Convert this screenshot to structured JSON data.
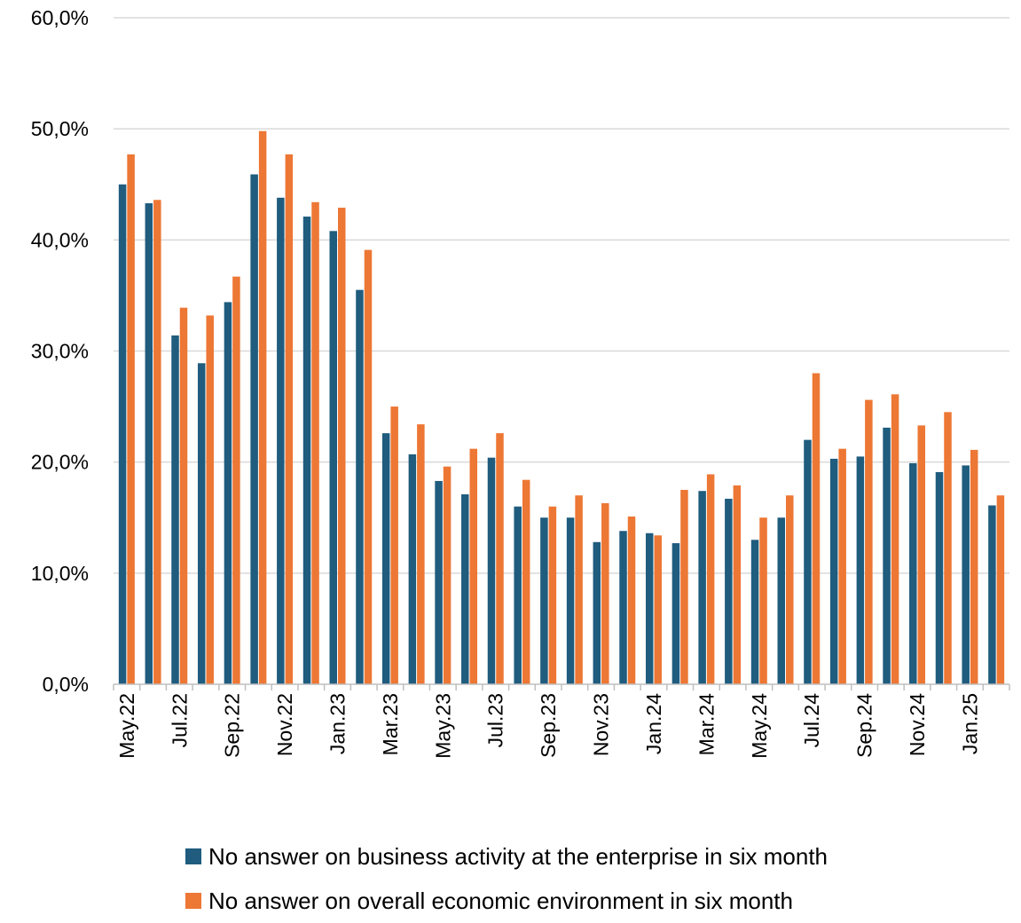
{
  "chart_data": {
    "type": "bar",
    "title": "",
    "xlabel": "",
    "ylabel": "",
    "ylim": [
      0,
      60
    ],
    "yticks": [
      "0,0%",
      "10,0%",
      "20,0%",
      "30,0%",
      "40,0%",
      "50,0%",
      "60,0%"
    ],
    "grid": true,
    "legend_position": "bottom",
    "categories": [
      "May.22",
      "Jun.22",
      "Jul.22",
      "Aug.22",
      "Sep.22",
      "Oct.22",
      "Nov.22",
      "Dec.22",
      "Jan.23",
      "Feb.23",
      "Mar.23",
      "Apr.23",
      "May.23",
      "Jun.23",
      "Jul.23",
      "Aug.23",
      "Sep.23",
      "Oct.23",
      "Nov.23",
      "Dec.23",
      "Jan.24",
      "Feb.24",
      "Mar.24",
      "Apr.24",
      "May.24",
      "Jun.24",
      "Jul.24",
      "Aug.24",
      "Sep.24",
      "Oct.24",
      "Nov.24",
      "Dec.24",
      "Jan.25",
      "Feb.25"
    ],
    "xtick_labels": [
      "May.22",
      "",
      "Jul.22",
      "",
      "Sep.22",
      "",
      "Nov.22",
      "",
      "Jan.23",
      "",
      "Mar.23",
      "",
      "May.23",
      "",
      "Jul.23",
      "",
      "Sep.23",
      "",
      "Nov.23",
      "",
      "Jan.24",
      "",
      "Mar.24",
      "",
      "May.24",
      "",
      "Jul.24",
      "",
      "Sep.24",
      "",
      "Nov.24",
      "",
      "Jan.25",
      ""
    ],
    "series": [
      {
        "name": "No answer on business activity at the enterprise in six month",
        "color": "#1f5c7e",
        "values": [
          45.0,
          43.3,
          31.4,
          28.9,
          34.4,
          45.9,
          43.8,
          42.1,
          40.8,
          35.5,
          22.6,
          20.7,
          18.3,
          17.1,
          20.4,
          16.0,
          15.0,
          15.0,
          12.8,
          13.8,
          13.6,
          12.7,
          17.4,
          16.7,
          13.0,
          15.0,
          22.0,
          20.3,
          20.5,
          23.1,
          19.9,
          19.1,
          19.7,
          16.1
        ]
      },
      {
        "name": "No answer on overall economic environment in six month",
        "color": "#ed7734",
        "values": [
          47.7,
          43.6,
          33.9,
          33.2,
          36.7,
          49.8,
          47.7,
          43.4,
          42.9,
          39.1,
          25.0,
          23.4,
          19.6,
          21.2,
          22.6,
          18.4,
          16.0,
          17.0,
          16.3,
          15.1,
          13.4,
          17.5,
          18.9,
          17.9,
          15.0,
          17.0,
          28.0,
          21.2,
          25.6,
          26.1,
          23.3,
          24.5,
          21.1,
          17.0
        ]
      }
    ]
  }
}
